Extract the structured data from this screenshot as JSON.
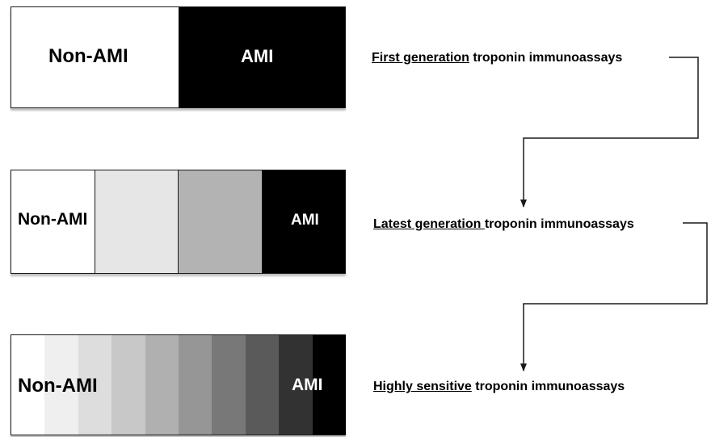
{
  "rows": [
    {
      "left_label": "Non-AMI",
      "right_label": "AMI",
      "caption_underlined": "First generation",
      "caption_rest": " troponin immunoassays",
      "segment_colors": [
        "#ffffff",
        "#000000"
      ]
    },
    {
      "left_label": "Non-AMI",
      "right_label": "AMI",
      "caption_underlined": "Latest generation ",
      "caption_rest": "troponin immunoassays",
      "segment_colors": [
        "#ffffff",
        "#e6e6e6",
        "#b3b3b3",
        "#000000"
      ]
    },
    {
      "left_label": "Non-AMI",
      "right_label": "AMI",
      "caption_underlined": "Highly sensitive",
      "caption_rest": " troponin immunoassays",
      "segment_colors": [
        "#ffffff",
        "#efefef",
        "#dddddd",
        "#c8c8c8",
        "#b0b0b0",
        "#969696",
        "#787878",
        "#5a5a5a",
        "#323232",
        "#000000"
      ]
    }
  ],
  "arrow_color": "#1a1a1a"
}
